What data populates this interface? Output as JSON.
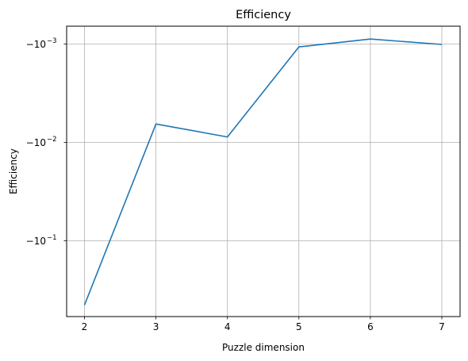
{
  "chart_data": {
    "type": "line",
    "title": "Efficiency",
    "xlabel": "Puzzle dimension",
    "ylabel": "Efficiency",
    "yscale": "symlog-negative",
    "grid": true,
    "x": [
      2,
      3,
      4,
      5,
      6,
      7
    ],
    "xticks": [
      "2",
      "3",
      "4",
      "5",
      "6",
      "7"
    ],
    "yticks": [
      {
        "value": -0.001,
        "base": "−10",
        "exp": "−3"
      },
      {
        "value": -0.01,
        "base": "−10",
        "exp": "−2"
      },
      {
        "value": -0.1,
        "base": "−10",
        "exp": "−1"
      }
    ],
    "series": [
      {
        "color": "#1f77b4",
        "values": [
          -0.45,
          -0.0065,
          -0.0088,
          -0.00107,
          -0.00089,
          -0.00101
        ]
      }
    ]
  }
}
